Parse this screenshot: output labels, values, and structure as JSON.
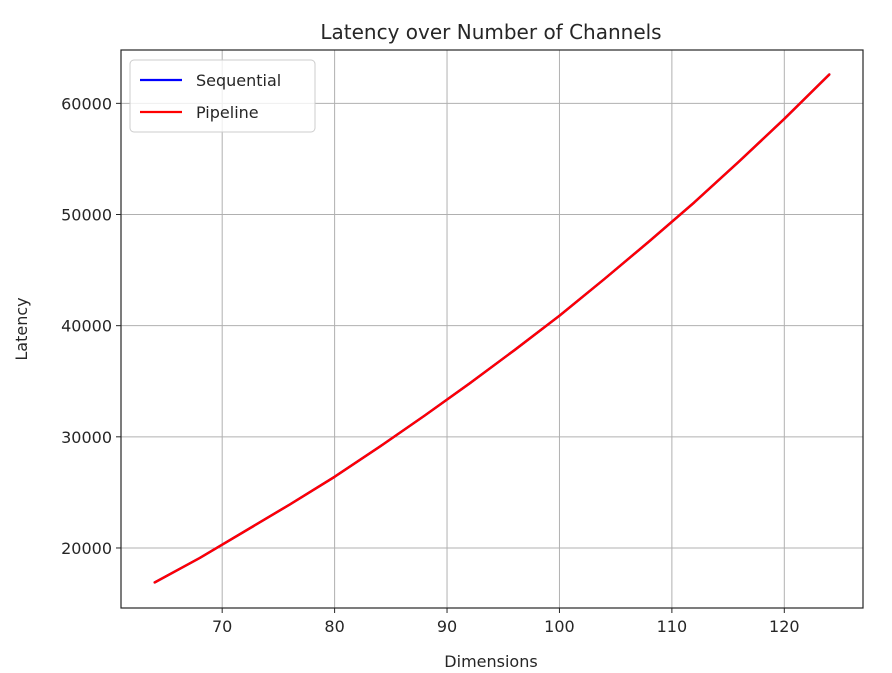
{
  "chart_data": {
    "type": "line",
    "title": "Latency over Number of Channels",
    "xlabel": "Dimensions",
    "ylabel": "Latency",
    "xlim": [
      61.0,
      127.0
    ],
    "ylim": [
      14600,
      64800
    ],
    "xticks": [
      70,
      80,
      90,
      100,
      110,
      120
    ],
    "yticks": [
      20000,
      30000,
      40000,
      50000,
      60000
    ],
    "grid": true,
    "legend_position": "top-left",
    "x": [
      64,
      68,
      72,
      76,
      80,
      84,
      88,
      92,
      96,
      100,
      104,
      108,
      112,
      116,
      120,
      124
    ],
    "series": [
      {
        "name": "Sequential",
        "color": "#0000ff",
        "values": [
          16900,
          19100,
          21500,
          23900,
          26400,
          29100,
          31900,
          34800,
          37800,
          40900,
          44200,
          47600,
          51100,
          54800,
          58600,
          62600
        ]
      },
      {
        "name": "Pipeline",
        "color": "#ff0000",
        "values": [
          16900,
          19100,
          21500,
          23900,
          26400,
          29100,
          31900,
          34800,
          37800,
          40900,
          44200,
          47600,
          51100,
          54800,
          58600,
          62600
        ]
      }
    ]
  }
}
